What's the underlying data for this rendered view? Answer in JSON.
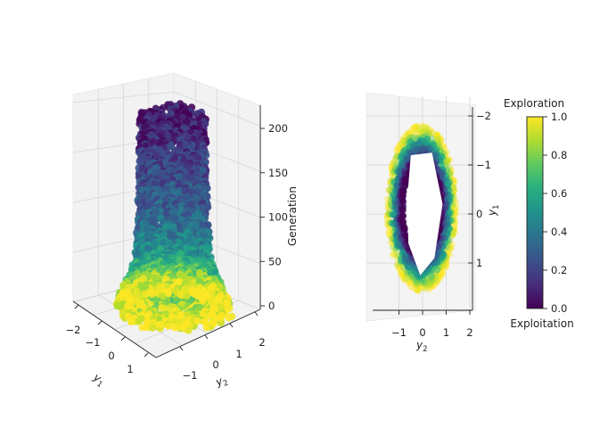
{
  "chart_data": [
    {
      "type": "scatter",
      "projection": "3d",
      "xlabel": "y_1",
      "ylabel": "y_2",
      "zlabel": "Generation",
      "x_ticks": [
        "−2",
        "−1",
        "0",
        "1"
      ],
      "y_ticks": [
        "−1",
        "0",
        "1",
        "2"
      ],
      "z_ticks": [
        "0",
        "50",
        "100",
        "150",
        "200"
      ],
      "xlim": [
        -2,
        1.6
      ],
      "ylim": [
        -1.6,
        2.2
      ],
      "zlim": [
        0,
        220
      ],
      "color_by": "exploration",
      "colormap": "viridis",
      "description_of_data": [
        {
          "generation": 0,
          "radius": 1.45,
          "exploration": 1.0
        },
        {
          "generation": 20,
          "radius": 1.25,
          "exploration": 0.85
        },
        {
          "generation": 40,
          "radius": 1.0,
          "exploration": 0.6
        },
        {
          "generation": 60,
          "radius": 0.9,
          "exploration": 0.45
        },
        {
          "generation": 100,
          "radius": 0.85,
          "exploration": 0.3
        },
        {
          "generation": 150,
          "radius": 0.82,
          "exploration": 0.2
        },
        {
          "generation": 210,
          "radius": 0.8,
          "exploration": 0.05
        }
      ]
    },
    {
      "type": "scatter",
      "projection": "3d-top-view",
      "xlabel": "y_2",
      "ylabel": "y_1",
      "x_ticks": [
        "−1",
        "0",
        "1",
        "2"
      ],
      "y_ticks": [
        "−2",
        "−1",
        "0",
        "1"
      ],
      "xlim": [
        -1.9,
        2.0
      ],
      "ylim": [
        -2.1,
        1.95
      ],
      "colormap": "viridis",
      "inner_hole_vertices_y2_y1": [
        [
          -0.5,
          -1.2
        ],
        [
          0.4,
          -1.25
        ],
        [
          0.85,
          -0.2
        ],
        [
          0.5,
          0.9
        ],
        [
          -0.1,
          1.25
        ],
        [
          -0.6,
          0.6
        ],
        [
          -0.65,
          -0.3
        ]
      ]
    }
  ],
  "colorbar": {
    "top_label": "Exploration",
    "bottom_label": "Exploitation",
    "ticks": [
      "0.0",
      "0.2",
      "0.4",
      "0.6",
      "0.8",
      "1.0"
    ],
    "range": [
      0,
      1
    ],
    "colormap": "viridis"
  },
  "labels": {
    "left_x_sub": "1",
    "left_y_sub": "2",
    "right_x_sub": "2",
    "right_y_sub": "1",
    "axis_var": "y"
  }
}
